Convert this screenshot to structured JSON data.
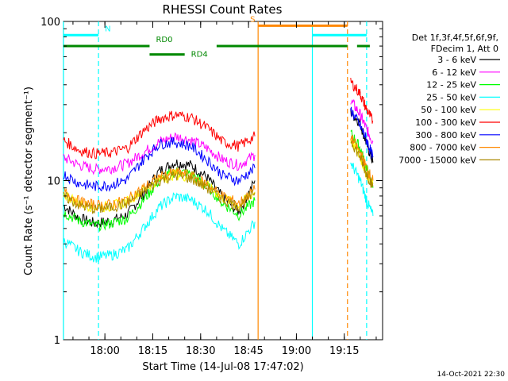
{
  "chart_data": {
    "type": "line",
    "title": "RHESSI Count Rates",
    "xlabel": "Start Time (14-Jul-08 17:47:02)",
    "ylabel": "Count Rate (s⁻¹ detector segment⁻¹)",
    "y_scale": "log",
    "ylim": [
      1,
      100
    ],
    "xlim": [
      "17:47:02",
      "19:27:00"
    ],
    "x_ticks": [
      "18:00",
      "18:15",
      "18:30",
      "18:45",
      "19:00",
      "19:15"
    ],
    "y_ticks": [
      "1",
      "10",
      "100"
    ],
    "legend_header": [
      "Det 1f,3f,4f,5f,6f,9f,",
      "FDecim 1, Att 0"
    ],
    "timestamp": "14-Oct-2021 22:30",
    "gap": [
      "18:48",
      "19:16"
    ],
    "x": [
      "17:47",
      "17:52",
      "17:57",
      "18:02",
      "18:07",
      "18:12",
      "18:17",
      "18:22",
      "18:27",
      "18:32",
      "18:37",
      "18:42",
      "18:47",
      "19:17",
      "19:20",
      "19:22",
      "19:24"
    ],
    "series": [
      {
        "name": "3 - 6 keV",
        "color": "#000000",
        "values": [
          7.0,
          5.8,
          5.4,
          5.6,
          6.1,
          8.2,
          11.5,
          13.0,
          12.5,
          10.5,
          7.8,
          6.4,
          10.0,
          27,
          23,
          17,
          13
        ]
      },
      {
        "name": "6 - 12 keV",
        "color": "#ff00ff",
        "values": [
          14.0,
          12.5,
          11.8,
          12.0,
          12.8,
          15.0,
          17.5,
          19.0,
          18.0,
          16.0,
          13.5,
          12.5,
          14.5,
          32,
          26,
          21,
          17.5
        ]
      },
      {
        "name": "12 - 25 keV",
        "color": "#00ff00",
        "values": [
          6.3,
          5.6,
          5.2,
          5.4,
          5.8,
          7.5,
          10.0,
          11.5,
          11.0,
          9.3,
          7.2,
          6.1,
          7.5,
          20,
          16,
          12,
          9.0
        ]
      },
      {
        "name": "25 - 50 keV",
        "color": "#00ffff",
        "values": [
          4.2,
          3.6,
          3.3,
          3.4,
          3.7,
          5.0,
          6.8,
          8.0,
          7.6,
          6.5,
          4.9,
          4.0,
          5.5,
          13,
          10,
          7.5,
          6.0
        ]
      },
      {
        "name": "50 - 100 keV",
        "color": "#ffff00",
        "values": [
          8.3,
          7.2,
          6.8,
          6.9,
          7.4,
          8.8,
          10.2,
          11.0,
          10.5,
          9.3,
          7.8,
          7.0,
          8.5,
          18,
          14,
          11,
          9.5
        ]
      },
      {
        "name": "100 - 300 keV",
        "color": "#ff0000",
        "values": [
          18.0,
          15.5,
          14.8,
          15.0,
          16.0,
          20.5,
          24.5,
          26.0,
          25.0,
          21.5,
          17.5,
          16.5,
          19.0,
          42,
          35,
          28,
          23.5
        ]
      },
      {
        "name": "300 - 800 keV",
        "color": "#0000ff",
        "values": [
          11.0,
          9.6,
          9.2,
          9.4,
          10.2,
          13.5,
          17.0,
          17.5,
          16.5,
          13.5,
          10.8,
          10.0,
          12.0,
          28,
          22,
          18,
          14.0
        ]
      },
      {
        "name": "800 - 7000 keV",
        "color": "#ff8800",
        "values": [
          8.6,
          7.4,
          7.0,
          7.1,
          7.6,
          9.0,
          10.5,
          11.3,
          10.8,
          9.5,
          8.0,
          7.2,
          8.8,
          19,
          15,
          12,
          10.0
        ]
      },
      {
        "name": "7000 - 15000 keV",
        "color": "#aa8800",
        "values": [
          8.0,
          7.0,
          6.6,
          6.8,
          7.2,
          8.5,
          10.0,
          10.8,
          10.3,
          9.0,
          7.6,
          6.9,
          8.4,
          18,
          14,
          11,
          9.2
        ]
      }
    ],
    "markers": [
      {
        "type": "bar",
        "label": "N",
        "color": "#00ffff",
        "y": 82,
        "segments": [
          [
            "17:47",
            "17:58"
          ],
          [
            "19:05",
            "19:22"
          ]
        ]
      },
      {
        "type": "bar",
        "label": "RD0",
        "color": "#008800",
        "y": 70,
        "segments": [
          [
            "17:47",
            "18:14"
          ],
          [
            "18:35",
            "19:16"
          ],
          [
            "19:19",
            "19:23"
          ]
        ]
      },
      {
        "type": "bar",
        "label": "RD4",
        "color": "#008800",
        "y": 62,
        "segments": [
          [
            "18:14",
            "18:25"
          ]
        ]
      },
      {
        "type": "bar",
        "label": "S",
        "color": "#ff8800",
        "y": 94,
        "segments": [
          [
            "18:48",
            "19:16"
          ]
        ]
      }
    ],
    "vlines": [
      {
        "t": "17:47",
        "color": "#00ffff",
        "dash": false
      },
      {
        "t": "17:58",
        "color": "#00ffff",
        "dash": true
      },
      {
        "t": "18:48",
        "color": "#ff8800",
        "dash": false
      },
      {
        "t": "19:05",
        "color": "#00ffff",
        "dash": false
      },
      {
        "t": "19:16",
        "color": "#ff8800",
        "dash": true
      },
      {
        "t": "19:22",
        "color": "#00ffff",
        "dash": true
      }
    ]
  }
}
